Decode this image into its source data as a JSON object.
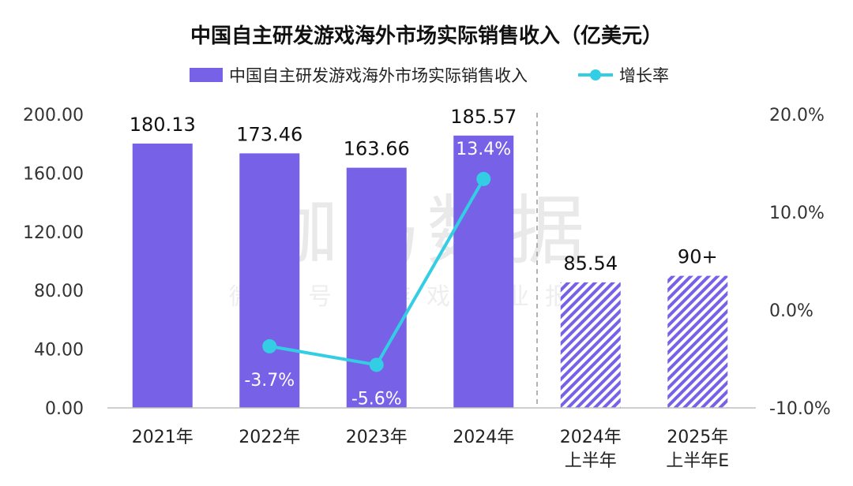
{
  "chart_data": {
    "type": "bar",
    "title": "中国自主研发游戏海外市场实际销售收入（亿美元）",
    "categories": [
      "2021年",
      "2022年",
      "2023年",
      "2024年",
      "2024年\n上半年",
      "2025年\n上半年E"
    ],
    "series": [
      {
        "name": "中国自主研发游戏海外市场实际销售收入",
        "type": "bar",
        "axis": "left",
        "values": [
          180.13,
          173.46,
          163.66,
          185.57,
          85.54,
          90
        ],
        "labels": [
          "180.13",
          "173.46",
          "163.66",
          "185.57",
          "85.54",
          "90+"
        ],
        "hatched": [
          false,
          false,
          false,
          false,
          true,
          true
        ]
      },
      {
        "name": "增长率",
        "type": "line",
        "axis": "right",
        "values": [
          null,
          -3.7,
          -5.6,
          13.4,
          null,
          null
        ],
        "labels": [
          "",
          "-3.7%",
          "-5.6%",
          "13.4%",
          "",
          ""
        ]
      }
    ],
    "left_axis": {
      "min": 0,
      "max": 200,
      "ticks": [
        "200.00",
        "160.00",
        "120.00",
        "80.00",
        "40.00",
        "0.00"
      ]
    },
    "right_axis": {
      "min": -10,
      "max": 20,
      "ticks": [
        "20.0%",
        "10.0%",
        "0.0%",
        "-10.0%"
      ]
    },
    "divider_after_index": 3,
    "legend_position": "top-center",
    "grid": false
  },
  "watermark": {
    "main": "伽马数据",
    "sub": "微信号：游戏产业报告"
  },
  "colors": {
    "bar": "#7762e7",
    "hatch": "#7762e7",
    "line": "#33cde4",
    "divider": "#999999"
  }
}
